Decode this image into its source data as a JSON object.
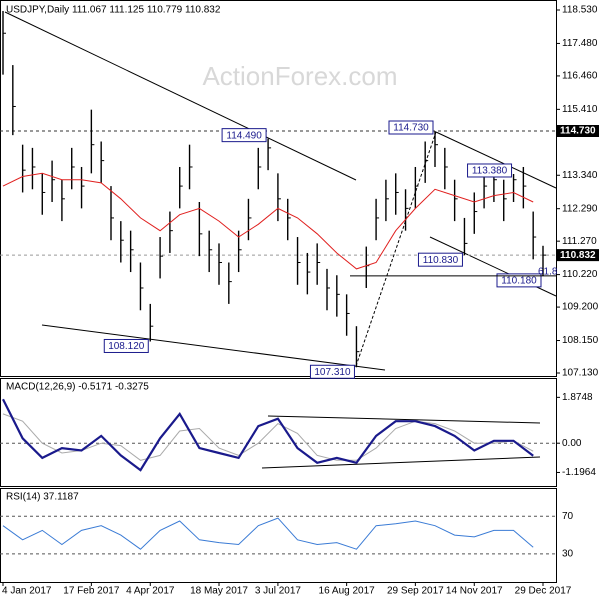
{
  "chart_data": {
    "type": "ohlc",
    "title": "USDJPY,Daily  111.067 111.125 110.779 110.832",
    "watermark": "ActionForex.com",
    "categories": [
      "4 Jan 2017",
      null,
      null,
      null,
      null,
      null,
      null,
      null,
      null,
      "17 Feb 2017",
      null,
      null,
      null,
      null,
      null,
      "4 Apr 2017",
      null,
      null,
      null,
      null,
      null,
      null,
      "18 May 2017",
      null,
      null,
      null,
      null,
      null,
      "3 Jul 2017",
      null,
      null,
      null,
      null,
      null,
      null,
      "16 Aug 2017",
      null,
      null,
      null,
      null,
      null,
      null,
      "29 Sep 2017",
      null,
      null,
      null,
      null,
      null,
      "14 Nov 2017",
      null,
      null,
      null,
      null,
      null,
      null,
      "29 Dec 2017"
    ],
    "high": [
      118.5,
      116.8,
      114.3,
      114.2,
      113.4,
      113.8,
      113.2,
      114.2,
      113.6,
      115.4,
      114.4,
      113.0,
      111.9,
      111.6,
      110.6,
      109.3,
      111.4,
      112.2,
      113.6,
      114.3,
      112.5,
      111.6,
      111.2,
      110.6,
      111.6,
      112.6,
      114.2,
      114.49,
      113.4,
      112.6,
      111.4,
      110.9,
      111.2,
      110.4,
      110.2,
      109.6,
      108.6,
      111.1,
      112.6,
      113.2,
      113.4,
      112.9,
      113.6,
      114.4,
      114.73,
      114.2,
      113.2,
      112.0,
      112.8,
      113.6,
      113.7,
      113.2,
      113.38,
      113.6,
      112.2,
      111.125
    ],
    "low": [
      116.5,
      114.6,
      112.8,
      112.9,
      112.1,
      112.5,
      111.9,
      112.9,
      112.3,
      113.4,
      113.1,
      111.3,
      110.6,
      110.3,
      109.1,
      108.12,
      110.1,
      110.9,
      112.3,
      112.9,
      110.8,
      110.3,
      109.9,
      109.3,
      110.3,
      111.3,
      112.9,
      113.5,
      111.9,
      111.3,
      109.9,
      109.6,
      109.9,
      109.1,
      108.9,
      108.3,
      107.31,
      109.8,
      111.3,
      111.9,
      112.1,
      111.6,
      112.3,
      113.1,
      113.6,
      112.9,
      111.9,
      110.83,
      111.5,
      112.3,
      112.5,
      111.9,
      112.5,
      112.3,
      110.7,
      110.18
    ],
    "close": [
      117.8,
      115.5,
      113.5,
      113.6,
      112.8,
      113.2,
      112.6,
      113.6,
      113.0,
      114.3,
      113.8,
      112.0,
      111.3,
      111.0,
      109.8,
      108.6,
      110.8,
      111.6,
      113.0,
      113.6,
      111.5,
      111.0,
      110.6,
      110.0,
      111.0,
      112.0,
      113.6,
      114.2,
      112.6,
      112.0,
      110.6,
      110.3,
      110.6,
      109.8,
      109.6,
      109.0,
      107.8,
      110.5,
      112.0,
      112.6,
      112.8,
      112.3,
      113.0,
      113.8,
      114.3,
      113.6,
      112.6,
      111.2,
      112.2,
      113.0,
      113.2,
      112.6,
      113.2,
      113.0,
      111.4,
      110.832
    ],
    "ma": {
      "color": "#e0201f",
      "values": [
        113.0,
        113.3,
        113.4,
        113.2,
        113.2,
        113.1,
        112.6,
        112.0,
        111.6,
        112.1,
        112.3,
        111.9,
        111.4,
        111.8,
        112.3,
        112.0,
        111.5,
        110.9,
        110.4,
        110.6,
        111.6,
        112.3,
        112.9,
        112.7,
        112.5,
        112.7,
        112.8,
        112.5
      ]
    },
    "ylim": [
      107.13,
      118.53
    ],
    "yticks": [
      {
        "value": 107.13,
        "label": "107.130"
      },
      {
        "value": 108.15,
        "label": "108.150"
      },
      {
        "value": 109.2,
        "label": "109.200"
      },
      {
        "value": 110.22,
        "label": "110.220"
      },
      {
        "value": 111.27,
        "label": "111.270"
      },
      {
        "value": 112.29,
        "label": "112.290"
      },
      {
        "value": 113.34,
        "label": "113.340"
      },
      {
        "value": 115.41,
        "label": "115.410"
      },
      {
        "value": 116.46,
        "label": "116.460"
      },
      {
        "value": 117.48,
        "label": "117.480"
      },
      {
        "value": 118.53,
        "label": "118.530"
      }
    ],
    "price_markers": [
      {
        "value": 114.73,
        "label": "114.730"
      },
      {
        "value": 110.832,
        "label": "110.832"
      }
    ],
    "annotations": [
      {
        "value": 114.49,
        "label": "114.490"
      },
      {
        "value": 108.12,
        "label": "108.120"
      },
      {
        "value": 107.31,
        "label": "107.310"
      },
      {
        "value": 114.73,
        "label": "114.730"
      },
      {
        "value": 113.38,
        "label": "113.380"
      },
      {
        "value": 110.83,
        "label": "110.830"
      },
      {
        "value": 110.18,
        "label": "110.180"
      }
    ],
    "fib_label": "61.8",
    "macd": {
      "title": "MACD(12,26,9) -0.5171 -0.3275",
      "ylim": [
        -1.75,
        2.625
      ],
      "yticks": [
        {
          "value": 1.8748,
          "label": "1.8748"
        },
        {
          "value": 0,
          "label": "0.00"
        },
        {
          "value": -1.1964,
          "label": "-1.1964"
        }
      ],
      "series": [
        {
          "color": "#1a1a8c",
          "values": [
            1.8,
            0.2,
            -0.6,
            -0.2,
            -0.3,
            0.3,
            -0.5,
            -1.1,
            0.2,
            1.2,
            -0.2,
            -0.4,
            -0.6,
            0.7,
            1.0,
            -0.2,
            -0.8,
            -0.6,
            -0.8,
            0.3,
            0.9,
            0.9,
            0.7,
            0.3,
            -0.3,
            0.1,
            0.1,
            -0.5171
          ]
        },
        {
          "color": "#aaaaaa",
          "values": [
            1.2,
            0.9,
            0.0,
            -0.4,
            -0.3,
            0.0,
            -0.1,
            -0.7,
            -0.5,
            0.5,
            0.6,
            -0.2,
            -0.5,
            0.0,
            0.8,
            0.4,
            -0.5,
            -0.7,
            -0.7,
            -0.2,
            0.6,
            0.9,
            0.8,
            0.5,
            0.0,
            0.0,
            0.1,
            -0.3275
          ]
        }
      ]
    },
    "rsi": {
      "title": "RSI(14) 37.1187",
      "ylim": [
        -1,
        99
      ],
      "yticks": [
        70,
        30
      ],
      "color": "#3a7bd5",
      "values": [
        60,
        45,
        55,
        40,
        55,
        60,
        50,
        35,
        55,
        65,
        45,
        42,
        40,
        60,
        68,
        45,
        40,
        42,
        35,
        60,
        62,
        65,
        60,
        50,
        48,
        55,
        55,
        37.1187
      ]
    }
  }
}
